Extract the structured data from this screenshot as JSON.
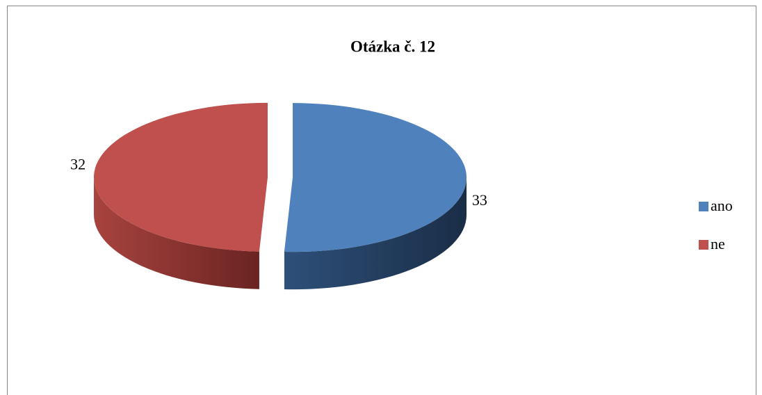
{
  "chart_data": {
    "type": "pie",
    "title": "Otázka č. 12",
    "categories": [
      "ano",
      "ne"
    ],
    "values": [
      33,
      32
    ],
    "colors": [
      "#4f81bd",
      "#c0504d"
    ],
    "legend": "right"
  }
}
